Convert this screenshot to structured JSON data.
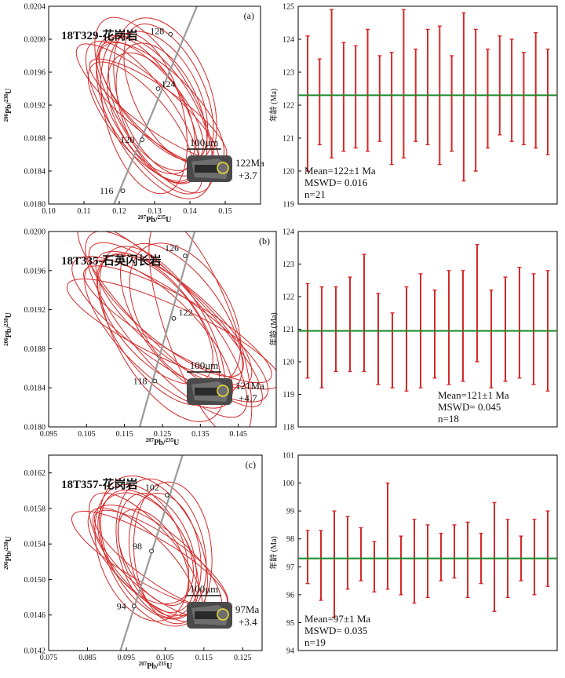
{
  "colors": {
    "ellipse": "#d42a2a",
    "concordia": "#9a9a9a",
    "mean_line": "#1f8a2c",
    "bar": "#d42a2a",
    "axis": "#000000"
  },
  "icons": [
    "zircon-grain-image"
  ],
  "chart_data": [
    {
      "type": "scatter",
      "panel_label": "(a)",
      "sample_name": "18T329-花岗岩",
      "xlabel": "207Pb/235U",
      "ylabel": "206Pb/238U",
      "xlim": [
        0.1,
        0.16
      ],
      "ylim": [
        0.018,
        0.0204
      ],
      "xticks": [
        "0.10",
        "0.11",
        "0.12",
        "0.13",
        "0.14",
        "0.15"
      ],
      "yticks": [
        "0.0180",
        "0.0184",
        "0.0188",
        "0.0192",
        "0.0196",
        "0.0200",
        "0.0204"
      ],
      "concordia_ages": [
        "116",
        "120",
        "124",
        "128"
      ],
      "scale_bar": "100μm",
      "spot_age": "122Ma",
      "spot_error": "+3.7",
      "ellipses": [
        {
          "x": 0.128,
          "y": 0.01915,
          "rx": 0.01,
          "ry": 0.001,
          "rot": -30
        },
        {
          "x": 0.131,
          "y": 0.01925,
          "rx": 0.012,
          "ry": 0.0009,
          "rot": -25
        },
        {
          "x": 0.127,
          "y": 0.01905,
          "rx": 0.009,
          "ry": 0.0011,
          "rot": -35
        },
        {
          "x": 0.133,
          "y": 0.0193,
          "rx": 0.013,
          "ry": 0.001,
          "rot": -20
        },
        {
          "x": 0.126,
          "y": 0.019,
          "rx": 0.008,
          "ry": 0.0009,
          "rot": -40
        },
        {
          "x": 0.13,
          "y": 0.0192,
          "rx": 0.011,
          "ry": 0.0012,
          "rot": -30
        },
        {
          "x": 0.129,
          "y": 0.0191,
          "rx": 0.01,
          "ry": 0.0008,
          "rot": -28
        },
        {
          "x": 0.132,
          "y": 0.0192,
          "rx": 0.009,
          "ry": 0.001,
          "rot": -45
        },
        {
          "x": 0.128,
          "y": 0.0192,
          "rx": 0.007,
          "ry": 0.0011,
          "rot": -50
        },
        {
          "x": 0.134,
          "y": 0.01935,
          "rx": 0.01,
          "ry": 0.0009,
          "rot": -25
        },
        {
          "x": 0.127,
          "y": 0.0191,
          "rx": 0.011,
          "ry": 0.001,
          "rot": -15
        },
        {
          "x": 0.131,
          "y": 0.01915,
          "rx": 0.006,
          "ry": 0.001,
          "rot": -55
        },
        {
          "x": 0.13,
          "y": 0.01905,
          "rx": 0.012,
          "ry": 0.0011,
          "rot": -30
        },
        {
          "x": 0.129,
          "y": 0.01925,
          "rx": 0.008,
          "ry": 0.0009,
          "rot": -40
        },
        {
          "x": 0.132,
          "y": 0.0191,
          "rx": 0.011,
          "ry": 0.0009,
          "rot": -22
        }
      ]
    },
    {
      "type": "bar",
      "ylabel": "年龄 (Ma)",
      "ylim": [
        119,
        125
      ],
      "yticks": [
        "119",
        "120",
        "121",
        "122",
        "123",
        "124",
        "125"
      ],
      "mean": 122.3,
      "mean_text": "Mean=122±1 Ma",
      "mswd_text": "MSWD= 0.016",
      "n_text": "n=21",
      "bars": [
        {
          "lo": 120.0,
          "hi": 124.1
        },
        {
          "lo": 120.8,
          "hi": 123.4
        },
        {
          "lo": 120.4,
          "hi": 124.9
        },
        {
          "lo": 120.6,
          "hi": 123.9
        },
        {
          "lo": 120.7,
          "hi": 123.8
        },
        {
          "lo": 120.6,
          "hi": 124.3
        },
        {
          "lo": 120.9,
          "hi": 123.5
        },
        {
          "lo": 120.2,
          "hi": 123.6
        },
        {
          "lo": 120.4,
          "hi": 124.9
        },
        {
          "lo": 120.9,
          "hi": 123.7
        },
        {
          "lo": 120.8,
          "hi": 124.3
        },
        {
          "lo": 120.2,
          "hi": 124.4
        },
        {
          "lo": 120.6,
          "hi": 123.5
        },
        {
          "lo": 119.7,
          "hi": 124.8
        },
        {
          "lo": 120.0,
          "hi": 124.3
        },
        {
          "lo": 120.7,
          "hi": 123.7
        },
        {
          "lo": 121.1,
          "hi": 124.1
        },
        {
          "lo": 120.9,
          "hi": 124.0
        },
        {
          "lo": 120.8,
          "hi": 123.6
        },
        {
          "lo": 120.7,
          "hi": 124.2
        },
        {
          "lo": 120.5,
          "hi": 123.7
        }
      ]
    },
    {
      "type": "scatter",
      "panel_label": "(b)",
      "sample_name": "18T335-石英闪长岩",
      "xlabel": "207Pb/235U",
      "ylabel": "206Pb/238U",
      "xlim": [
        0.095,
        0.155
      ],
      "ylim": [
        0.018,
        0.02
      ],
      "xticks": [
        "0.095",
        "0.105",
        "0.115",
        "0.125",
        "0.135",
        "0.145"
      ],
      "yticks": [
        "0.0180",
        "0.0184",
        "0.0188",
        "0.0192",
        "0.0196",
        "0.0200"
      ],
      "concordia_ages": [
        "118",
        "122",
        "126"
      ],
      "scale_bar": "100μm",
      "spot_age": "121Ma",
      "spot_error": "+4.7",
      "ellipses": [
        {
          "x": 0.126,
          "y": 0.01905,
          "rx": 0.01,
          "ry": 0.0012,
          "rot": -40
        },
        {
          "x": 0.128,
          "y": 0.0191,
          "rx": 0.009,
          "ry": 0.001,
          "rot": -50
        },
        {
          "x": 0.124,
          "y": 0.019,
          "rx": 0.011,
          "ry": 0.0009,
          "rot": -35
        },
        {
          "x": 0.127,
          "y": 0.01915,
          "rx": 0.008,
          "ry": 0.0013,
          "rot": -45
        },
        {
          "x": 0.125,
          "y": 0.01895,
          "rx": 0.012,
          "ry": 0.001,
          "rot": -30
        },
        {
          "x": 0.129,
          "y": 0.01905,
          "rx": 0.007,
          "ry": 0.0011,
          "rot": -60
        },
        {
          "x": 0.123,
          "y": 0.0191,
          "rx": 0.01,
          "ry": 0.0008,
          "rot": -40
        },
        {
          "x": 0.127,
          "y": 0.019,
          "rx": 0.009,
          "ry": 0.0012,
          "rot": -55
        },
        {
          "x": 0.13,
          "y": 0.0191,
          "rx": 0.011,
          "ry": 0.0009,
          "rot": -35
        },
        {
          "x": 0.135,
          "y": 0.019,
          "rx": 0.009,
          "ry": 0.0012,
          "rot": -20
        },
        {
          "x": 0.126,
          "y": 0.0192,
          "rx": 0.008,
          "ry": 0.001,
          "rot": -50
        },
        {
          "x": 0.124,
          "y": 0.01895,
          "rx": 0.01,
          "ry": 0.001,
          "rot": -45
        },
        {
          "x": 0.128,
          "y": 0.01895,
          "rx": 0.007,
          "ry": 0.0012,
          "rot": -65
        },
        {
          "x": 0.131,
          "y": 0.01915,
          "rx": 0.012,
          "ry": 0.0008,
          "rot": -30
        }
      ]
    },
    {
      "type": "bar",
      "ylabel": "年龄 (Ma)",
      "ylim": [
        118,
        124
      ],
      "yticks": [
        "118",
        "119",
        "120",
        "121",
        "122",
        "123",
        "124"
      ],
      "mean": 120.95,
      "mean_text": "Mean=121±1 Ma",
      "mswd_text": "MSWD= 0.045",
      "n_text": "n=18",
      "bars": [
        {
          "lo": 119.5,
          "hi": 122.4
        },
        {
          "lo": 119.2,
          "hi": 122.3
        },
        {
          "lo": 119.7,
          "hi": 122.3
        },
        {
          "lo": 119.7,
          "hi": 122.6
        },
        {
          "lo": 119.7,
          "hi": 123.3
        },
        {
          "lo": 119.3,
          "hi": 122.1
        },
        {
          "lo": 119.2,
          "hi": 121.5
        },
        {
          "lo": 119.1,
          "hi": 122.3
        },
        {
          "lo": 119.2,
          "hi": 122.7
        },
        {
          "lo": 119.5,
          "hi": 122.2
        },
        {
          "lo": 119.3,
          "hi": 122.8
        },
        {
          "lo": 119.4,
          "hi": 122.8
        },
        {
          "lo": 120.0,
          "hi": 123.6
        },
        {
          "lo": 119.2,
          "hi": 122.2
        },
        {
          "lo": 119.4,
          "hi": 122.6
        },
        {
          "lo": 119.5,
          "hi": 122.9
        },
        {
          "lo": 119.3,
          "hi": 122.7
        },
        {
          "lo": 119.1,
          "hi": 122.8
        }
      ]
    },
    {
      "type": "scatter",
      "panel_label": "(c)",
      "sample_name": "18T357-花岗岩",
      "xlabel": "207Pb/235U",
      "ylabel": "206Pb/238U",
      "xlim": [
        0.075,
        0.13
      ],
      "ylim": [
        0.0142,
        0.0164
      ],
      "xticks": [
        "0.075",
        "0.085",
        "0.095",
        "0.105",
        "0.115",
        "0.125"
      ],
      "yticks": [
        "0.0142",
        "0.0146",
        "0.0150",
        "0.0154",
        "0.0158",
        "0.0162"
      ],
      "concordia_ages": [
        "94",
        "98",
        "102"
      ],
      "scale_bar": "100μm",
      "spot_age": "97Ma",
      "spot_error": "+3.4",
      "ellipses": [
        {
          "x": 0.101,
          "y": 0.01528,
          "rx": 0.01,
          "ry": 0.0008,
          "rot": -30
        },
        {
          "x": 0.103,
          "y": 0.0153,
          "rx": 0.009,
          "ry": 0.0007,
          "rot": -20
        },
        {
          "x": 0.1,
          "y": 0.01525,
          "rx": 0.008,
          "ry": 0.0009,
          "rot": -40
        },
        {
          "x": 0.104,
          "y": 0.01535,
          "rx": 0.011,
          "ry": 0.0008,
          "rot": -15
        },
        {
          "x": 0.099,
          "y": 0.0152,
          "rx": 0.007,
          "ry": 0.0008,
          "rot": -45
        },
        {
          "x": 0.102,
          "y": 0.01532,
          "rx": 0.012,
          "ry": 0.0009,
          "rot": -25
        },
        {
          "x": 0.101,
          "y": 0.01522,
          "rx": 0.006,
          "ry": 0.001,
          "rot": -60
        },
        {
          "x": 0.105,
          "y": 0.01528,
          "rx": 0.009,
          "ry": 0.0007,
          "rot": -10
        },
        {
          "x": 0.1,
          "y": 0.01535,
          "rx": 0.01,
          "ry": 0.0007,
          "rot": -35
        },
        {
          "x": 0.103,
          "y": 0.0152,
          "rx": 0.008,
          "ry": 0.0009,
          "rot": -50
        },
        {
          "x": 0.107,
          "y": 0.0153,
          "rx": 0.01,
          "ry": 0.0008,
          "rot": -5
        },
        {
          "x": 0.102,
          "y": 0.01525,
          "rx": 0.007,
          "ry": 0.0006,
          "rot": -30
        },
        {
          "x": 0.099,
          "y": 0.0153,
          "rx": 0.011,
          "ry": 0.0008,
          "rot": -20
        },
        {
          "x": 0.104,
          "y": 0.01522,
          "rx": 0.006,
          "ry": 0.0009,
          "rot": -55
        }
      ]
    },
    {
      "type": "bar",
      "ylabel": "年龄 (Ma)",
      "ylim": [
        94,
        101
      ],
      "yticks": [
        "94",
        "95",
        "96",
        "97",
        "98",
        "99",
        "100",
        "101"
      ],
      "mean": 97.3,
      "mean_text": "Mean=97±1 Ma",
      "mswd_text": "MSWD= 0.035",
      "n_text": "n=19",
      "bars": [
        {
          "lo": 96.4,
          "hi": 98.3
        },
        {
          "lo": 95.8,
          "hi": 98.3
        },
        {
          "lo": 95.2,
          "hi": 99.0
        },
        {
          "lo": 96.2,
          "hi": 98.8
        },
        {
          "lo": 96.5,
          "hi": 98.4
        },
        {
          "lo": 96.1,
          "hi": 97.9
        },
        {
          "lo": 96.2,
          "hi": 100.0
        },
        {
          "lo": 96.0,
          "hi": 98.1
        },
        {
          "lo": 95.7,
          "hi": 98.7
        },
        {
          "lo": 95.9,
          "hi": 98.5
        },
        {
          "lo": 96.5,
          "hi": 98.2
        },
        {
          "lo": 96.6,
          "hi": 98.5
        },
        {
          "lo": 95.9,
          "hi": 98.6
        },
        {
          "lo": 96.4,
          "hi": 98.2
        },
        {
          "lo": 95.4,
          "hi": 99.3
        },
        {
          "lo": 95.9,
          "hi": 98.7
        },
        {
          "lo": 96.5,
          "hi": 98.1
        },
        {
          "lo": 96.0,
          "hi": 98.7
        },
        {
          "lo": 96.3,
          "hi": 99.0
        }
      ]
    }
  ]
}
